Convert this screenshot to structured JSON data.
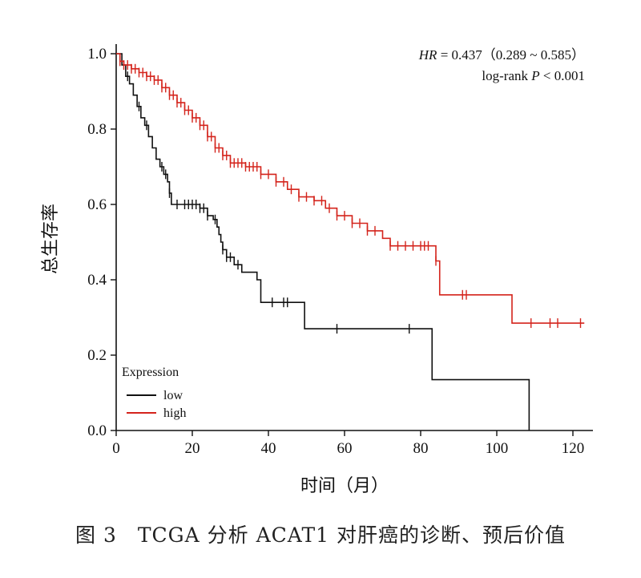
{
  "caption": "图 3　TCGA 分析 ACAT1 对肝癌的诊断、预后价值",
  "chart_data": {
    "type": "line",
    "subtype": "kaplan-meier step",
    "xlabel": "时间（月）",
    "ylabel": "总生存率",
    "xlim": [
      0,
      125
    ],
    "ylim": [
      0,
      1.0
    ],
    "x_ticks": [
      "0",
      "20",
      "40",
      "60",
      "80",
      "100",
      "120"
    ],
    "y_ticks": [
      "0.0",
      "0.2",
      "0.4",
      "0.6",
      "0.8",
      "1.0"
    ],
    "annotation_hr_label": "HR",
    "annotation_hr_value": " = 0.437（0.289 ~ 0.585）",
    "annotation_p_prefix": "log-rank ",
    "annotation_p_label": "P",
    "annotation_p_value": " < 0.001",
    "legend_title": "Expression",
    "legend_position": "bottom-left",
    "series": [
      {
        "name": "low",
        "color": "#111111",
        "steps": [
          [
            0,
            1.0
          ],
          [
            1.5,
            0.97
          ],
          [
            2.5,
            0.94
          ],
          [
            3.5,
            0.92
          ],
          [
            4.5,
            0.89
          ],
          [
            5.5,
            0.86
          ],
          [
            6.5,
            0.83
          ],
          [
            7.5,
            0.81
          ],
          [
            8.5,
            0.78
          ],
          [
            9.5,
            0.75
          ],
          [
            10.5,
            0.72
          ],
          [
            11.5,
            0.7
          ],
          [
            12.5,
            0.68
          ],
          [
            13.5,
            0.66
          ],
          [
            14,
            0.63
          ],
          [
            14.5,
            0.6
          ],
          [
            22,
            0.59
          ],
          [
            24,
            0.57
          ],
          [
            25.5,
            0.56
          ],
          [
            26.5,
            0.54
          ],
          [
            27,
            0.52
          ],
          [
            27.5,
            0.5
          ],
          [
            28,
            0.48
          ],
          [
            29,
            0.46
          ],
          [
            31,
            0.44
          ],
          [
            33,
            0.42
          ],
          [
            37,
            0.4
          ],
          [
            38,
            0.34
          ],
          [
            49.5,
            0.27
          ],
          [
            83,
            0.135
          ],
          [
            108.5,
            0.0
          ]
        ],
        "end_x": 108.5,
        "censor_x": [
          3,
          6,
          8,
          12,
          13,
          14,
          16,
          18,
          19,
          20,
          21,
          22,
          23,
          24,
          26,
          28,
          29,
          30,
          32,
          41,
          44,
          45,
          58,
          77
        ]
      },
      {
        "name": "high",
        "color": "#d4241c",
        "steps": [
          [
            0,
            1.0
          ],
          [
            1,
            0.98
          ],
          [
            2,
            0.97
          ],
          [
            4,
            0.96
          ],
          [
            6,
            0.95
          ],
          [
            8,
            0.94
          ],
          [
            10,
            0.93
          ],
          [
            12,
            0.91
          ],
          [
            14,
            0.89
          ],
          [
            16,
            0.87
          ],
          [
            18,
            0.85
          ],
          [
            20,
            0.83
          ],
          [
            22,
            0.81
          ],
          [
            24,
            0.78
          ],
          [
            26,
            0.75
          ],
          [
            28,
            0.73
          ],
          [
            30,
            0.71
          ],
          [
            34,
            0.7
          ],
          [
            38,
            0.68
          ],
          [
            42,
            0.66
          ],
          [
            45,
            0.64
          ],
          [
            48,
            0.62
          ],
          [
            52,
            0.61
          ],
          [
            55,
            0.59
          ],
          [
            58,
            0.57
          ],
          [
            62,
            0.55
          ],
          [
            66,
            0.53
          ],
          [
            70,
            0.51
          ],
          [
            72,
            0.49
          ],
          [
            84,
            0.45
          ],
          [
            85,
            0.36
          ],
          [
            104,
            0.285
          ]
        ],
        "end_x": 123,
        "censor_x": [
          1,
          2,
          3,
          4,
          5,
          6,
          7,
          8,
          9,
          10,
          11,
          12,
          13,
          14,
          15,
          16,
          17,
          18,
          19,
          20,
          21,
          22,
          23,
          24,
          25,
          26,
          27,
          28,
          29,
          30,
          31,
          32,
          33,
          34,
          35,
          36,
          37,
          38,
          40,
          42,
          44,
          46,
          48,
          50,
          52,
          54,
          56,
          58,
          60,
          62,
          64,
          66,
          68,
          72,
          74,
          76,
          78,
          80,
          81,
          82,
          84,
          91,
          92,
          109,
          114,
          116,
          122
        ]
      }
    ]
  }
}
